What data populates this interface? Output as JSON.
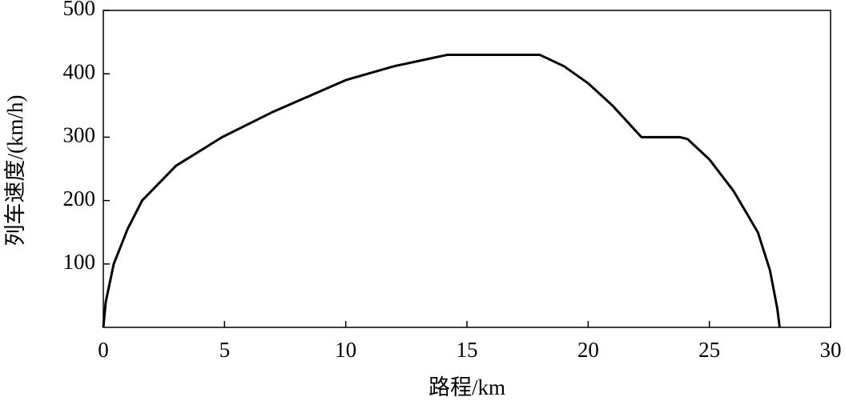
{
  "chart_data": {
    "type": "line",
    "x_label": "路程/km",
    "y_label": "列车速度/(km/h)",
    "series": [
      {
        "color": "#000000",
        "x": [
          0,
          0.1,
          0.43,
          1,
          1.6,
          3,
          4.9,
          7,
          10,
          12,
          14.2,
          18.0,
          19,
          20,
          21,
          22.2,
          23.8,
          24.1,
          25,
          26,
          27,
          27.5,
          27.8,
          27.9
        ],
        "values": [
          0,
          40,
          100,
          155,
          200,
          255,
          300,
          340,
          390,
          412,
          430,
          430,
          412,
          385,
          350,
          300,
          300,
          297,
          265,
          215,
          150,
          90,
          30,
          0
        ]
      }
    ],
    "xlim": [
      0,
      30
    ],
    "xticks": [
      0,
      5,
      10,
      15,
      20,
      25,
      30
    ],
    "ylim": [
      0,
      500
    ],
    "yticks": [
      100,
      200,
      300,
      400,
      500
    ]
  }
}
